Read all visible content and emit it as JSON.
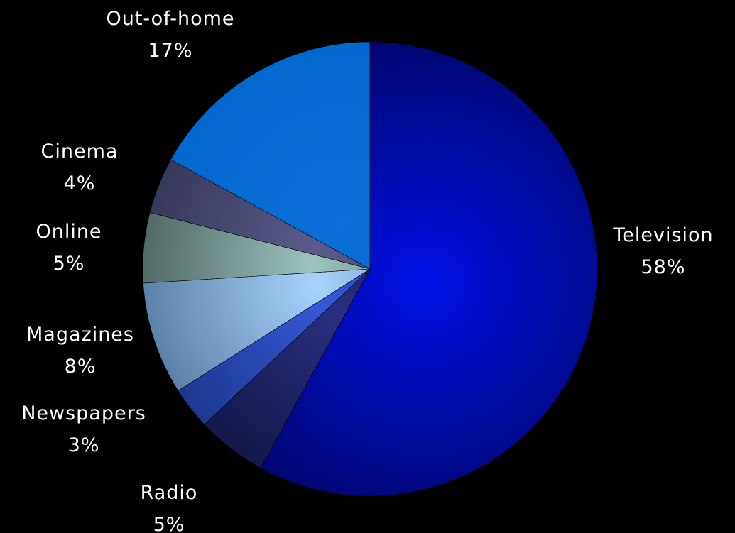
{
  "chart_data": {
    "type": "pie",
    "title": "",
    "slices": [
      {
        "label": "Television",
        "value_label": "58%",
        "value": 58,
        "color_light": "#0011e6",
        "color_dark": "#00066e"
      },
      {
        "label": "Radio",
        "value_label": "5%",
        "value": 5,
        "color_light": "#2a2f80",
        "color_dark": "#0a0d33"
      },
      {
        "label": "Newspapers",
        "value_label": "3%",
        "value": 3,
        "color_light": "#3559d6",
        "color_dark": "#0f2a6e"
      },
      {
        "label": "Magazines",
        "value_label": "8%",
        "value": 8,
        "color_light": "#a8d4ff",
        "color_dark": "#3a5c80"
      },
      {
        "label": "Online",
        "value_label": "5%",
        "value": 5,
        "color_light": "#9fc4c0",
        "color_dark": "#2c3f3d"
      },
      {
        "label": "Cinema",
        "value_label": "4%",
        "value": 4,
        "color_light": "#5b5c8c",
        "color_dark": "#262841"
      },
      {
        "label": "Out-of-home",
        "value_label": "17%",
        "value": 17,
        "color_light": "#0a6fd6",
        "color_dark": "#0066cc"
      }
    ]
  }
}
